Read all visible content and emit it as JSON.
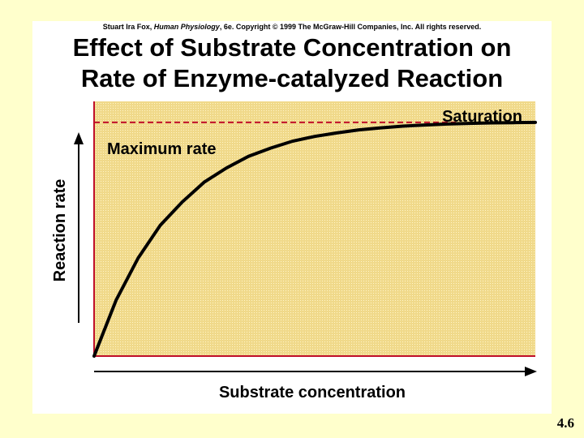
{
  "header": {
    "copyright_pre": "Stuart Ira Fox, ",
    "copyright_book": "Human Physiology",
    "copyright_post": ", 6e. Copyright © 1999 The McGraw-Hill Companies, Inc.  All rights reserved."
  },
  "slide_number": "4.6",
  "chart_data": {
    "type": "line",
    "title_line1": "Effect of Substrate Concentration on",
    "title_line2": "Rate of Enzyme-catalyzed Reaction",
    "xlabel": "Substrate concentration",
    "ylabel": "Reaction rate",
    "annotations": {
      "max_rate": "Maximum rate",
      "saturation": "Saturation"
    },
    "series": [
      {
        "x": [
          0,
          0.05,
          0.1,
          0.15,
          0.2,
          0.25,
          0.3,
          0.35,
          0.4,
          0.45,
          0.5,
          0.55,
          0.6,
          0.65,
          0.7,
          0.75,
          0.8,
          0.85,
          0.9,
          0.95,
          1.0
        ],
        "y": [
          0,
          0.24,
          0.42,
          0.56,
          0.66,
          0.745,
          0.805,
          0.855,
          0.89,
          0.92,
          0.94,
          0.955,
          0.968,
          0.977,
          0.984,
          0.989,
          0.993,
          0.996,
          0.998,
          0.999,
          1.0
        ]
      }
    ],
    "max_rate_y": 1.0,
    "xlim": [
      0,
      1
    ],
    "ylim": [
      0,
      1.09
    ],
    "ticks": false,
    "grid": false,
    "colors": {
      "plot_bg": "#f0d98a",
      "axis": "#c0102a",
      "curve": "#000000",
      "max_rate_line": "#c0102a"
    }
  }
}
